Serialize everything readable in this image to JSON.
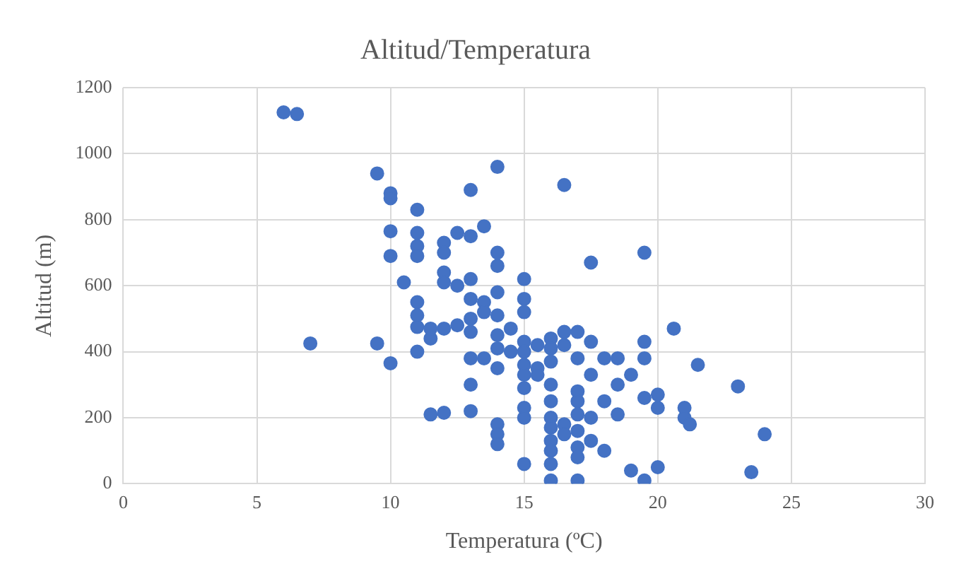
{
  "chart_data": {
    "type": "scatter",
    "title": "Altitud/Temperatura",
    "xlabel": "Temperatura (ºC)",
    "ylabel": "Altitud (m)",
    "xlim": [
      0,
      30
    ],
    "xticks": [
      0,
      5,
      10,
      15,
      20,
      25,
      30
    ],
    "ylim": [
      0,
      1200
    ],
    "yticks": [
      0,
      200,
      400,
      600,
      800,
      1000,
      1200
    ],
    "grid": true,
    "marker": "circle",
    "series": [
      {
        "color": "#4472c4",
        "x": [
          6,
          6.5,
          7,
          9.5,
          9.5,
          10,
          10,
          10,
          10,
          10,
          10.5,
          11,
          11,
          11,
          11,
          11,
          11,
          11,
          11,
          11.5,
          11.5,
          11.5,
          12,
          12,
          12,
          12,
          12,
          12,
          12.5,
          12.5,
          12.5,
          13,
          13,
          13,
          13,
          13,
          13,
          13,
          13,
          13,
          13.5,
          13.5,
          13.5,
          13.5,
          14,
          14,
          14,
          14,
          14,
          14,
          14,
          14,
          14,
          14,
          14,
          14.5,
          14.5,
          15,
          15,
          15,
          15,
          15,
          15,
          15,
          15,
          15,
          15,
          15,
          15.5,
          15.5,
          15.5,
          16,
          16,
          16,
          16,
          16,
          16,
          16,
          16,
          16,
          16,
          16,
          16.5,
          16.5,
          16.5,
          16.5,
          16.5,
          17,
          17,
          17,
          17,
          17,
          17,
          17,
          17,
          17,
          17.5,
          17.5,
          17.5,
          17.5,
          17.5,
          18,
          18,
          18,
          18.5,
          18.5,
          18.5,
          19,
          19,
          19.5,
          19.5,
          19.5,
          19.5,
          19.5,
          20,
          20,
          20,
          20.6,
          21,
          21,
          21.2,
          21.5,
          23,
          23.5,
          24
        ],
        "values": [
          1125,
          1120,
          425,
          940,
          425,
          880,
          865,
          765,
          690,
          365,
          610,
          830,
          760,
          720,
          690,
          550,
          510,
          475,
          400,
          440,
          470,
          210,
          730,
          700,
          640,
          610,
          470,
          215,
          760,
          600,
          480,
          890,
          750,
          620,
          560,
          500,
          460,
          380,
          300,
          220,
          780,
          550,
          520,
          380,
          960,
          700,
          660,
          580,
          510,
          450,
          410,
          350,
          180,
          150,
          120,
          470,
          400,
          620,
          560,
          520,
          430,
          400,
          360,
          330,
          290,
          230,
          200,
          60,
          420,
          350,
          330,
          440,
          410,
          370,
          300,
          250,
          200,
          170,
          130,
          100,
          60,
          10,
          905,
          460,
          420,
          180,
          150,
          460,
          380,
          280,
          250,
          210,
          160,
          110,
          80,
          10,
          670,
          430,
          330,
          200,
          130,
          380,
          250,
          100,
          380,
          300,
          210,
          330,
          40,
          700,
          430,
          380,
          260,
          10,
          270,
          230,
          50,
          470,
          230,
          200,
          180,
          360,
          295,
          35,
          150
        ]
      }
    ]
  }
}
